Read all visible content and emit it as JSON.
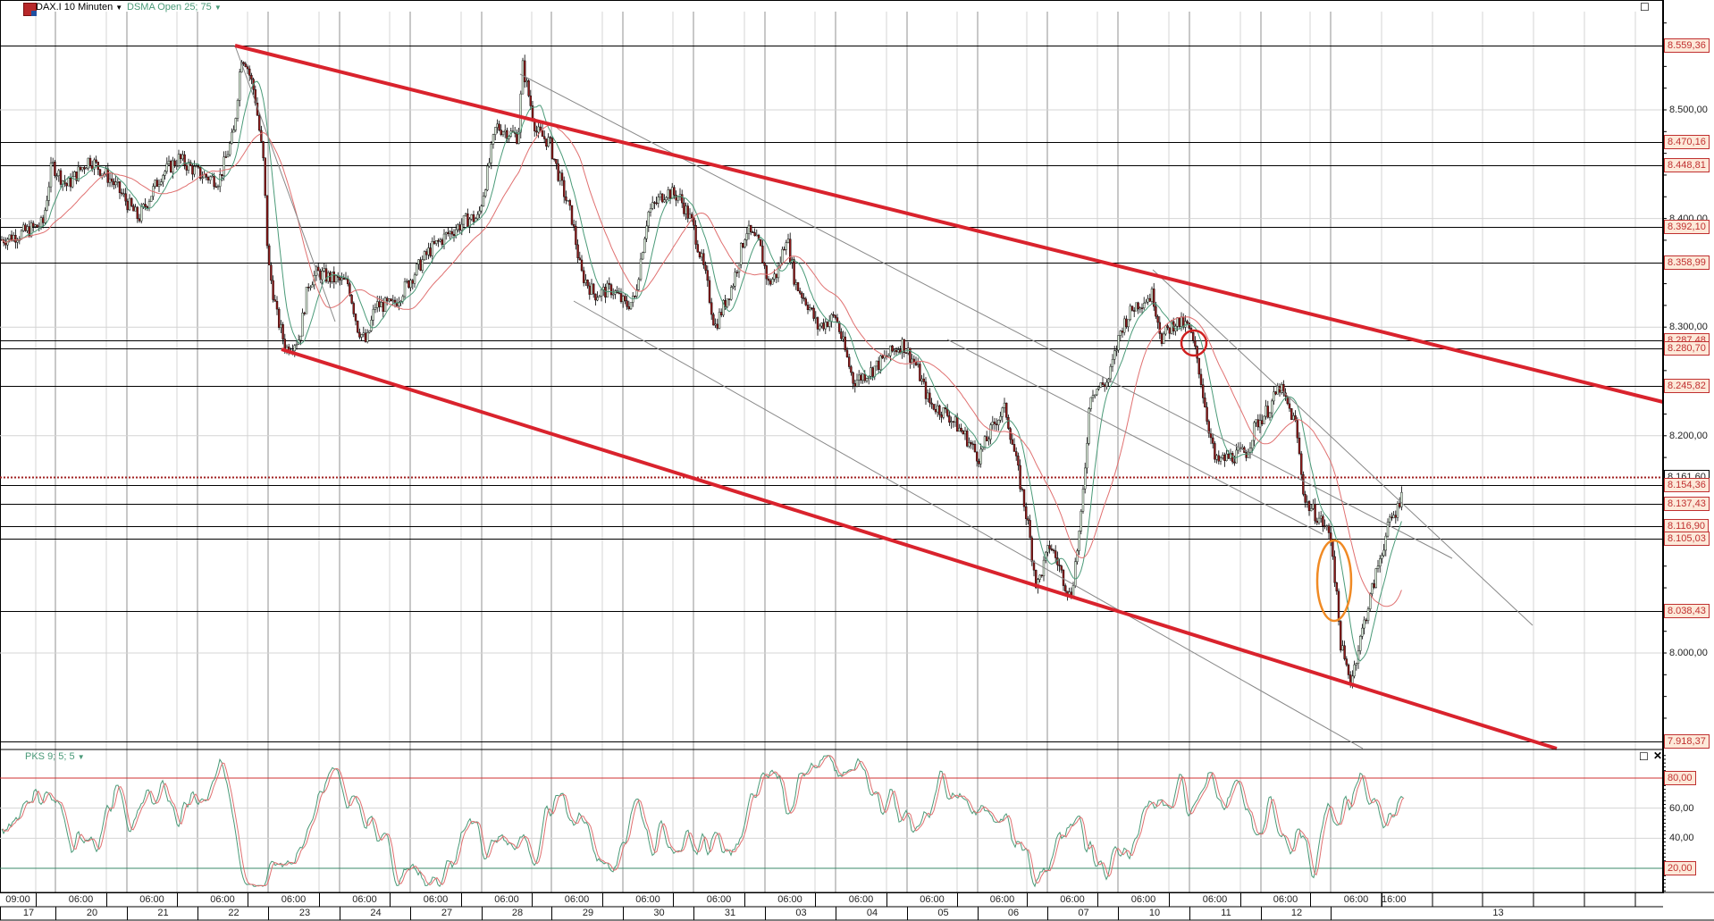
{
  "header": {
    "instrument_icon": "cfd-icon",
    "title": "DAX.I 10 Minuten",
    "indicator": "DSMA Open  25; 75",
    "dropdown_icon": "caret-down-icon"
  },
  "subpanel": {
    "label": "PKS 9; 5; 5",
    "maximize_icon": "maximize-icon",
    "close_icon": "close-icon"
  },
  "main_panel": {
    "maximize_icon": "maximize-icon"
  },
  "colors": {
    "channel": "#d9232d",
    "candle_up": "#d9ecd9",
    "candle_down": "#8b1a1a",
    "ma_fast": "#4a9a78",
    "ma_slow": "#e07070",
    "last_price_line": "#a02020",
    "label_bg": "#fde9d9",
    "label_border": "#c03030",
    "annotation_circle": "#d02020",
    "annotation_ellipse": "#f08a24"
  },
  "price_axis": {
    "ticks": [
      "8.500,00",
      "8.400,00",
      "8.300,00",
      "8.200,00",
      "8.000,00"
    ],
    "tick_values": [
      8500,
      8400,
      8300,
      8200,
      8000
    ],
    "levels": [
      {
        "label": "8.559,36",
        "value": 8559.36
      },
      {
        "label": "8.470,16",
        "value": 8470.16
      },
      {
        "label": "8.448,81",
        "value": 8448.81
      },
      {
        "label": "8.392,10",
        "value": 8392.1
      },
      {
        "label": "8.358,99",
        "value": 8358.99
      },
      {
        "label": "8.287,48",
        "value": 8287.48
      },
      {
        "label": "8.280,70",
        "value": 8280.7
      },
      {
        "label": "8.245,82",
        "value": 8245.82
      },
      {
        "label": "8.154,36",
        "value": 8154.36
      },
      {
        "label": "8.137,43",
        "value": 8137.43
      },
      {
        "label": "8.116,90",
        "value": 8116.9
      },
      {
        "label": "8.105,03",
        "value": 8105.03
      },
      {
        "label": "8.038,43",
        "value": 8038.43
      },
      {
        "label": "7.918,37",
        "value": 7918.37
      }
    ],
    "last_price": {
      "label": "8.161,60",
      "value": 8161.6
    }
  },
  "osc_axis": {
    "ticks": [
      "60,00",
      "40,00"
    ],
    "levels": [
      {
        "label": "80,00",
        "value": 80
      },
      {
        "label": "20,00",
        "value": 20
      }
    ]
  },
  "time_axis": {
    "times": [
      "09:00",
      "06:00",
      "06:00",
      "06:00",
      "06:00",
      "06:00",
      "06:00",
      "06:00",
      "06:00",
      "06:00",
      "06:00",
      "06:00",
      "06:00",
      "06:00",
      "06:00",
      "06:00",
      "06:00",
      "06:00",
      "06:00",
      "16:00"
    ],
    "dates": [
      "17",
      "20",
      "21",
      "22",
      "23",
      "24",
      "27",
      "28",
      "29",
      "30",
      "31",
      "03",
      "04",
      "05",
      "06",
      "07",
      "10",
      "11",
      "12",
      "13"
    ]
  },
  "chart_data": {
    "type": "candlestick",
    "title": "DAX.I 10 Minuten",
    "indicators": [
      "DSMA Open 25; 75",
      "PKS 9; 5; 5"
    ],
    "xlabel": "",
    "ylabel": "",
    "ylim": [
      7900,
      8580
    ],
    "categories": [
      "17",
      "20",
      "21",
      "22",
      "23",
      "24",
      "27",
      "28",
      "29",
      "30",
      "31",
      "03",
      "04",
      "05",
      "06",
      "07",
      "10",
      "11",
      "12",
      "13"
    ],
    "approx_close_by_day": [
      8390,
      8440,
      8460,
      8480,
      8320,
      8310,
      8390,
      8470,
      8330,
      8410,
      8330,
      8350,
      8270,
      8190,
      8080,
      8290,
      8280,
      8170,
      8030,
      8160
    ],
    "horizontal_levels": [
      8559.36,
      8470.16,
      8448.81,
      8392.1,
      8358.99,
      8287.48,
      8280.7,
      8245.82,
      8154.36,
      8137.43,
      8116.9,
      8105.03,
      8038.43,
      7918.37
    ],
    "last_price": 8161.6,
    "oscillator": {
      "name": "PKS 9; 5; 5",
      "ylim": [
        0,
        100
      ],
      "upper_band": 80,
      "lower_band": 20
    },
    "grid": true,
    "legend_position": "top-left"
  }
}
